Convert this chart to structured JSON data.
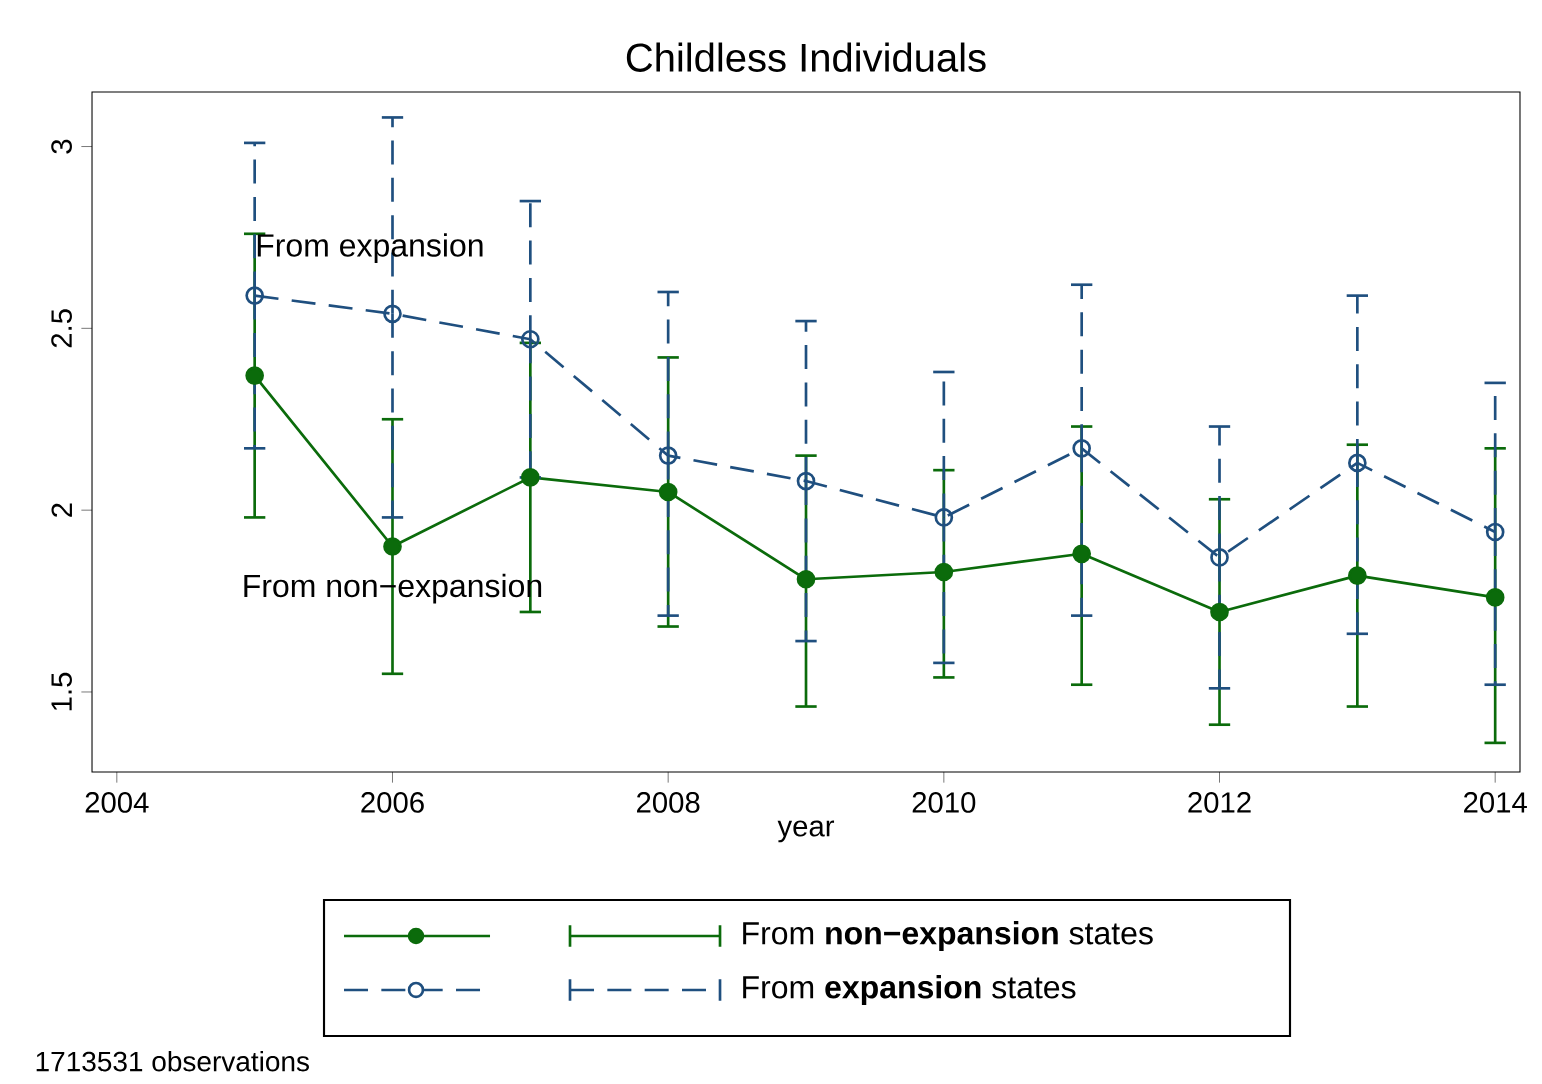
{
  "chart_data": {
    "type": "line",
    "title": "Childless Individuals",
    "xlabel": "year",
    "x": [
      2005,
      2006,
      2007,
      2008,
      2009,
      2010,
      2011,
      2012,
      2013,
      2014
    ],
    "series": [
      {
        "name": "From **non−expansion** states",
        "color": "#0b6b0b",
        "line_style": "solid",
        "marker": "circle",
        "values": [
          2.37,
          1.9,
          2.09,
          2.05,
          1.81,
          1.83,
          1.88,
          1.72,
          1.82,
          1.76
        ],
        "errors": [
          [
            1.98,
            2.76
          ],
          [
            1.55,
            2.25
          ],
          [
            1.72,
            2.46
          ],
          [
            1.68,
            2.42
          ],
          [
            1.46,
            2.15
          ],
          [
            1.54,
            2.11
          ],
          [
            1.52,
            2.23
          ],
          [
            1.41,
            2.03
          ],
          [
            1.46,
            2.18
          ],
          [
            1.36,
            2.17
          ]
        ]
      },
      {
        "name": "From **expansion** states",
        "color": "#1f4f7f",
        "line_style": "dashed",
        "marker": "circle",
        "values": [
          2.59,
          2.54,
          2.47,
          2.15,
          2.08,
          1.98,
          2.17,
          1.87,
          2.13,
          1.94
        ],
        "errors": [
          [
            2.17,
            3.01
          ],
          [
            1.98,
            3.08
          ],
          0.38,
          [
            1.71,
            2.6
          ],
          [
            1.64,
            2.52
          ],
          [
            1.58,
            2.38
          ],
          [
            1.71,
            2.62
          ],
          [
            1.51,
            2.23
          ],
          [
            1.66,
            2.59
          ],
          [
            1.52,
            2.35
          ]
        ]
      }
    ],
    "xlim": [
      2003.82,
      2014.18
    ],
    "ylim": [
      1.28,
      3.15
    ],
    "xticks": [
      2004,
      2006,
      2008,
      2010,
      2012,
      2014
    ],
    "yticks": [
      1.5,
      2,
      2.5,
      3
    ],
    "grid": false,
    "legend": "bottom",
    "annotations": [
      {
        "text": "From expansion",
        "x": 2005,
        "y": 2.59
      },
      {
        "text": "From non−expansion",
        "x": 2006,
        "y": 1.9
      },
      "1713531 observations"
    ]
  }
}
